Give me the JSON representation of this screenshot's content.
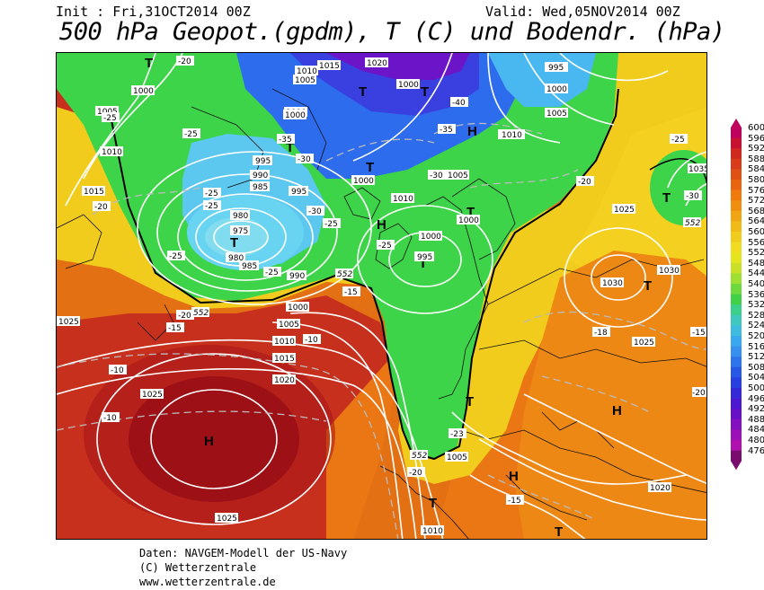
{
  "header": {
    "init": "Init : Fri,31OCT2014 00Z",
    "valid": "Valid: Wed,05NOV2014 00Z",
    "title": "500 hPa Geopot.(gpdm), T (C) und Bodendr. (hPa)"
  },
  "map": {
    "pressure_centers": [
      {
        "symbol": "T"
      },
      {
        "symbol": "T"
      },
      {
        "symbol": "T"
      },
      {
        "symbol": "H"
      },
      {
        "symbol": "T"
      },
      {
        "symbol": "H"
      },
      {
        "symbol": "T"
      },
      {
        "symbol": "T"
      },
      {
        "symbol": "T"
      },
      {
        "symbol": "T"
      },
      {
        "symbol": "H"
      },
      {
        "symbol": "T"
      },
      {
        "symbol": "H"
      },
      {
        "symbol": "H"
      },
      {
        "symbol": "T"
      },
      {
        "symbol": "T"
      },
      {
        "symbol": "T"
      },
      {
        "symbol": "T"
      }
    ],
    "isobar_labels": [
      "1000",
      "1005",
      "1010",
      "1015",
      "1020",
      "1025",
      "1030",
      "995",
      "990",
      "985",
      "980",
      "975",
      "1035"
    ],
    "temperature_labels": [
      "-20",
      "-25",
      "-30",
      "-35",
      "-40",
      "-15",
      "-10",
      "-18",
      "-23"
    ],
    "contour_552_label": "552",
    "colors": {
      "purple": "#7a16c8",
      "blue": "#2a5cf0",
      "cyan": "#5fc8f2",
      "green": "#38d64a",
      "yellow": "#f5d21e",
      "orange": "#f07e0e",
      "red": "#c8281e",
      "darkred": "#8c0c18"
    }
  },
  "scale": {
    "values": [
      "600",
      "596",
      "592",
      "588",
      "584",
      "580",
      "576",
      "572",
      "568",
      "564",
      "560",
      "556",
      "552",
      "548",
      "544",
      "540",
      "536",
      "532",
      "528",
      "524",
      "520",
      "516",
      "512",
      "508",
      "504",
      "500",
      "496",
      "492",
      "488",
      "484",
      "480",
      "476"
    ],
    "colors": [
      "#c0005e",
      "#c81030",
      "#d0281e",
      "#d83c1a",
      "#e05014",
      "#e8640e",
      "#f07a0c",
      "#f08e10",
      "#f0a614",
      "#f0ba18",
      "#f0cc1c",
      "#f2dc22",
      "#e6e41e",
      "#c8e028",
      "#9ee032",
      "#6ed83c",
      "#42d048",
      "#3ad08a",
      "#3ec8c0",
      "#3ebce0",
      "#3aa8ee",
      "#3690ee",
      "#2e74ea",
      "#2858e6",
      "#2840e0",
      "#3428d8",
      "#4c18d0",
      "#6810c8",
      "#8410c0",
      "#9c10b8",
      "#b010b0",
      "#7a0c70"
    ]
  },
  "footer": {
    "line1": "Daten: NAVGEM-Modell der US-Navy",
    "line2": "(C) Wetterzentrale",
    "line3": "www.wetterzentrale.de"
  }
}
